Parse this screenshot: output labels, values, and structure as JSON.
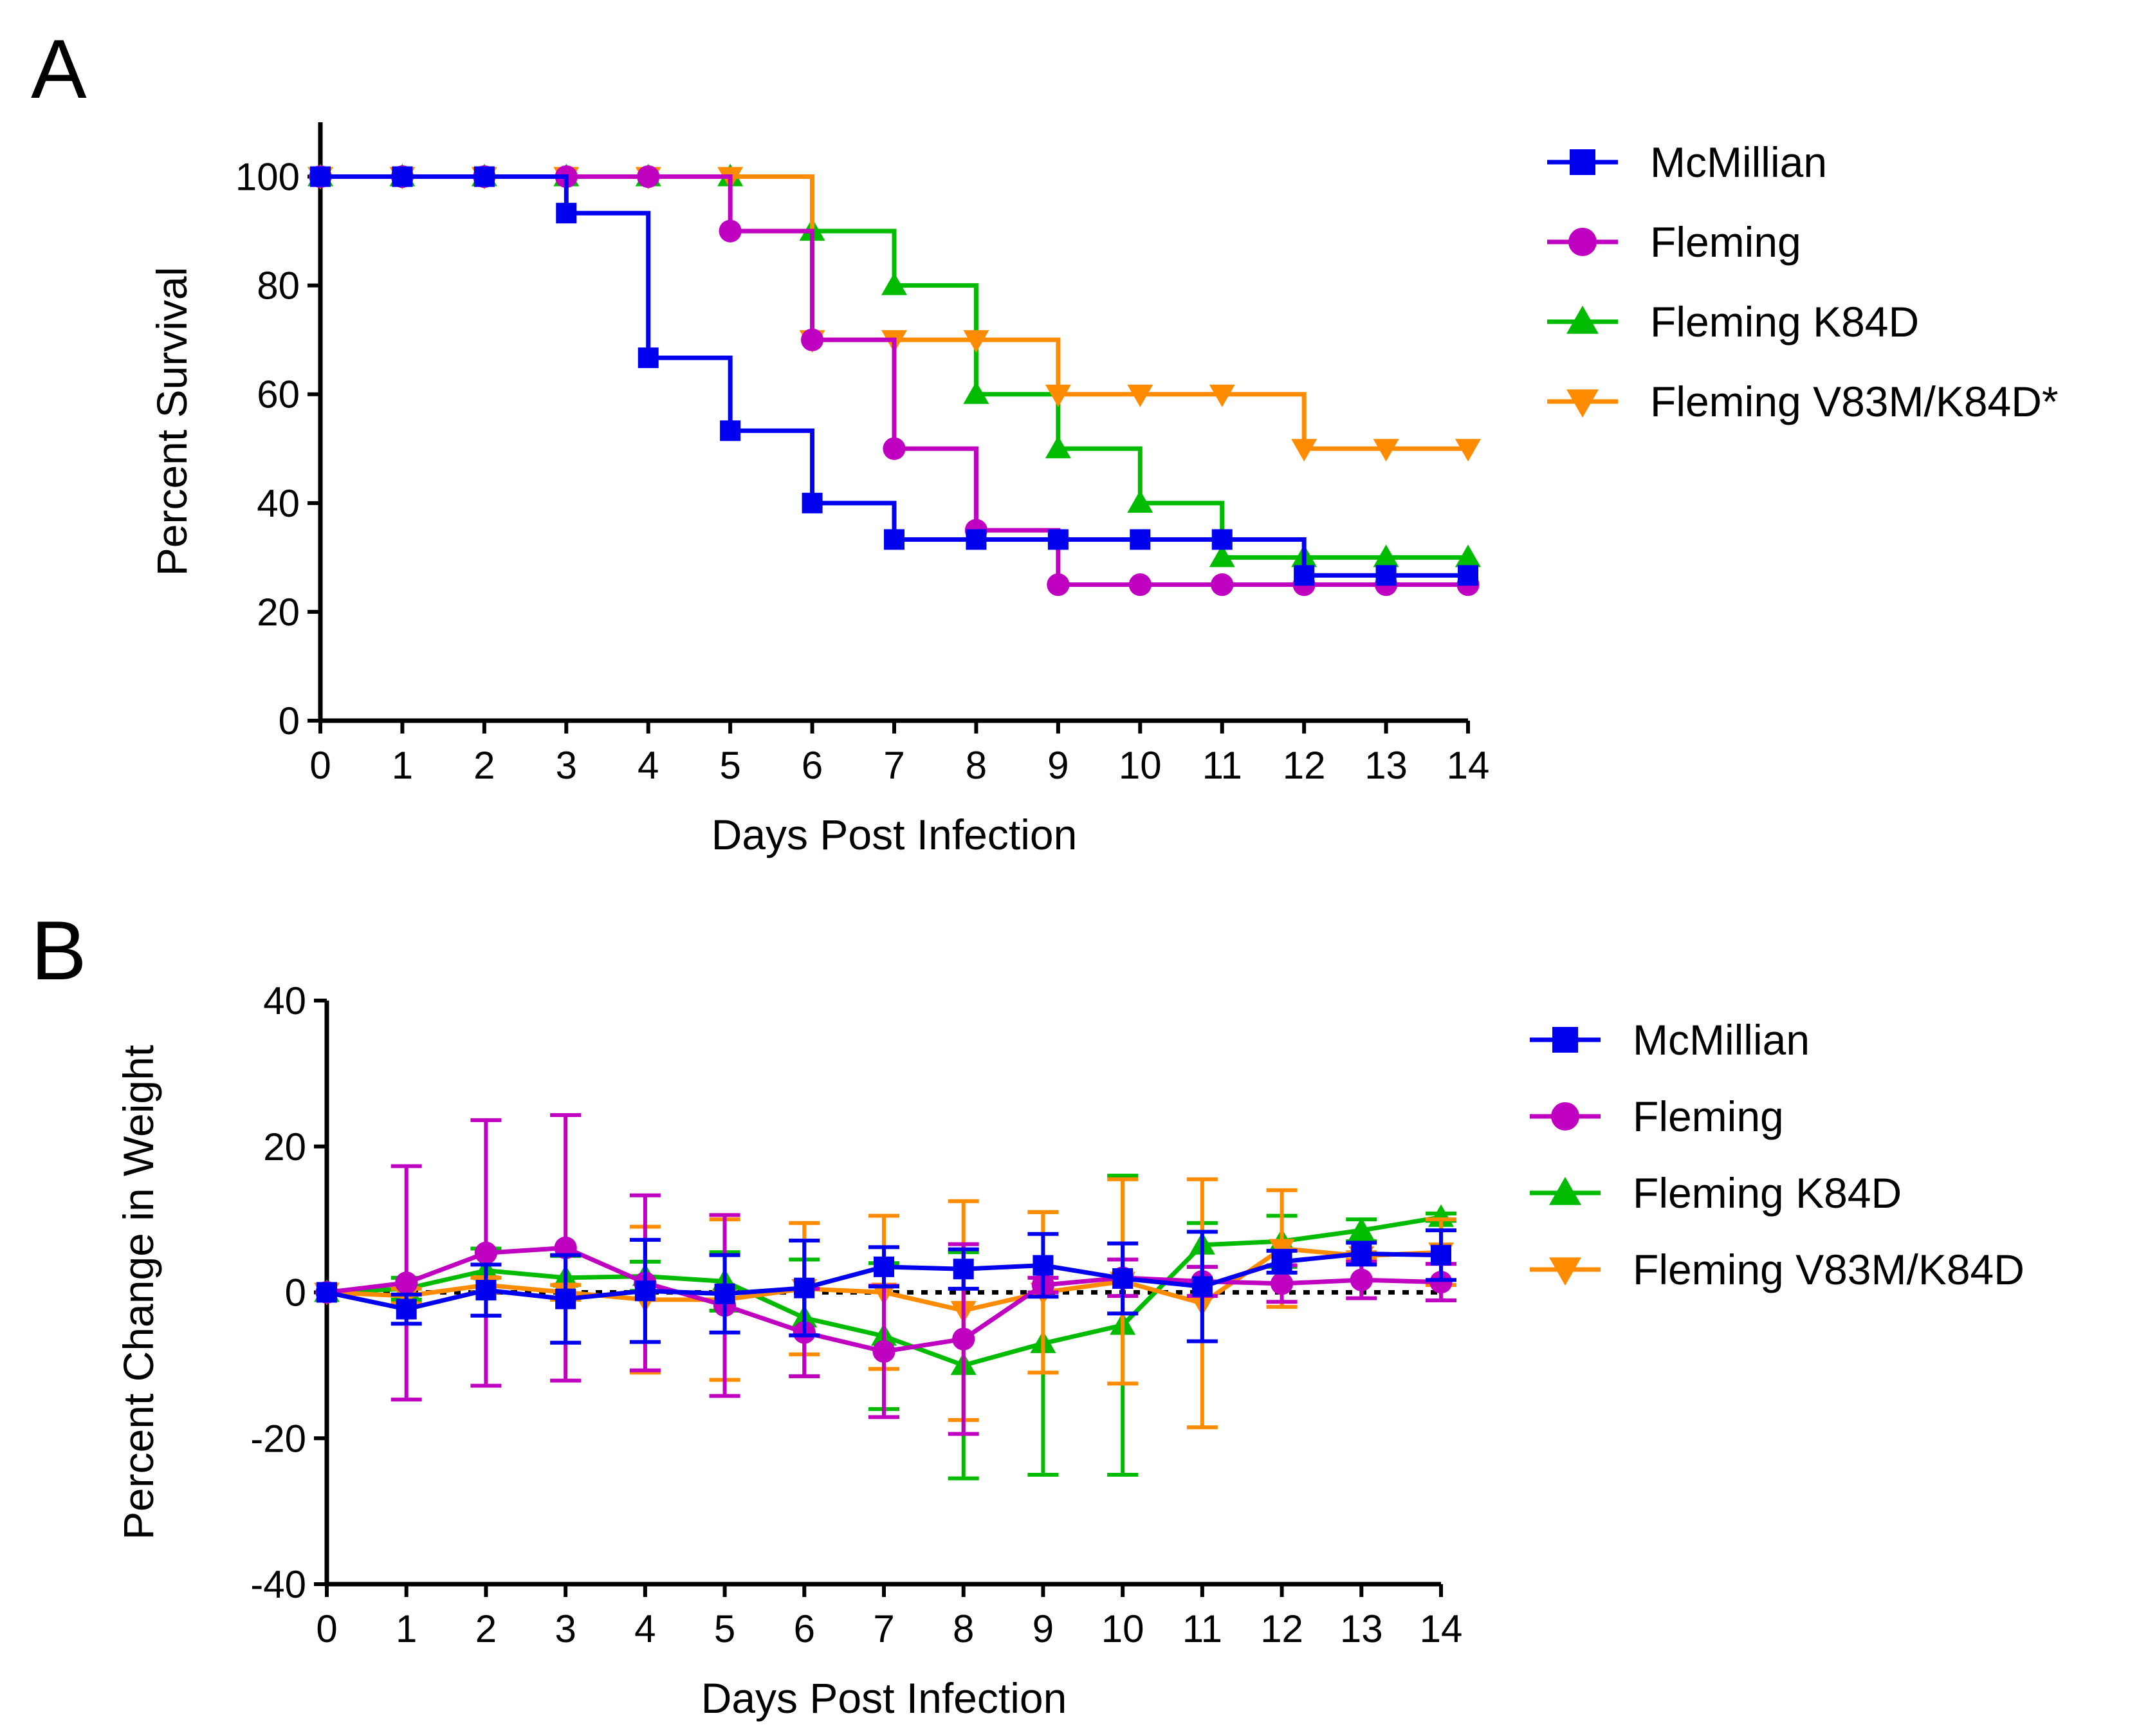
{
  "chart_data": [
    {
      "panel": "A",
      "type": "line",
      "style": "step",
      "xlabel": "Days Post Infection",
      "ylabel": "Percent Survival",
      "xlim": [
        0,
        14
      ],
      "ylim": [
        0,
        110
      ],
      "xticks": [
        0,
        1,
        2,
        3,
        4,
        5,
        6,
        7,
        8,
        9,
        10,
        11,
        12,
        13,
        14
      ],
      "yticks": [
        0,
        20,
        40,
        60,
        80,
        100
      ],
      "x": [
        0,
        1,
        2,
        3,
        4,
        5,
        6,
        7,
        8,
        9,
        10,
        11,
        12,
        13,
        14
      ],
      "series": [
        {
          "name": "McMillian",
          "color": "#0000ee",
          "marker": "square",
          "values": [
            100,
            100,
            100,
            93.3,
            66.7,
            53.3,
            40,
            33.3,
            33.3,
            33.3,
            33.3,
            33.3,
            26.7,
            26.7,
            26.7
          ]
        },
        {
          "name": "Fleming",
          "color": "#c000c0",
          "marker": "circle",
          "values": [
            100,
            100,
            100,
            100,
            100,
            90,
            70,
            50,
            35,
            25,
            25,
            25,
            25,
            25,
            25
          ]
        },
        {
          "name": "Fleming K84D",
          "color": "#00bb00",
          "marker": "triangle-up",
          "values": [
            100,
            100,
            100,
            100,
            100,
            100,
            90,
            80,
            60,
            50,
            40,
            30,
            30,
            30,
            30
          ]
        },
        {
          "name": "Fleming V83M/K84D*",
          "color": "#ff8c00",
          "marker": "triangle-down",
          "values": [
            100,
            100,
            100,
            100,
            100,
            100,
            70,
            70,
            70,
            60,
            60,
            60,
            50,
            50,
            50
          ]
        }
      ]
    },
    {
      "panel": "B",
      "type": "line",
      "xlabel": "Days Post Infection",
      "ylabel": "Percent Change in Weight",
      "xlim": [
        0,
        14
      ],
      "ylim": [
        -40,
        40
      ],
      "xticks": [
        0,
        1,
        2,
        3,
        4,
        5,
        6,
        7,
        8,
        9,
        10,
        11,
        12,
        13,
        14
      ],
      "yticks": [
        -40,
        -20,
        0,
        20,
        40
      ],
      "x": [
        0,
        1,
        2,
        3,
        4,
        5,
        6,
        7,
        8,
        9,
        10,
        11,
        12,
        13,
        14
      ],
      "reference_line": 0,
      "series": [
        {
          "name": "Fleming K84D",
          "color": "#00bb00",
          "marker": "triangle-up",
          "values": [
            0,
            0.5,
            3,
            2,
            2.2,
            1.5,
            -3.5,
            -6,
            -10,
            -7,
            -4.5,
            6.5,
            7,
            8.5,
            10.3
          ],
          "errors": [
            0,
            1.5,
            3,
            3,
            2,
            4,
            8,
            10,
            15.5,
            18,
            20.5,
            3,
            3.5,
            1.5,
            0.5
          ]
        },
        {
          "name": "Fleming V83M/K84D",
          "color": "#ff8c00",
          "marker": "triangle-down",
          "values": [
            0,
            -0.5,
            1,
            0,
            -1,
            -1,
            0.5,
            0,
            -2.5,
            0,
            1.5,
            -1.5,
            6,
            5,
            5.5
          ],
          "errors": [
            0,
            1,
            1,
            1,
            10,
            11,
            9,
            10.5,
            15,
            11,
            14,
            17,
            8,
            0.5,
            4.5
          ]
        },
        {
          "name": "Fleming",
          "color": "#c000c0",
          "marker": "circle",
          "values": [
            0,
            1.3,
            5.4,
            6.1,
            1.3,
            -1.8,
            -5.5,
            -8.1,
            -6.4,
            1,
            2,
            1.5,
            1.2,
            1.7,
            1.4
          ],
          "errors": [
            0,
            16,
            18.2,
            18.2,
            12,
            12.4,
            6,
            9,
            13,
            1,
            2.5,
            2,
            2.5,
            2.5,
            2.5
          ]
        },
        {
          "name": "McMillian",
          "color": "#0000ee",
          "marker": "square",
          "values": [
            0,
            -2.3,
            0.3,
            -0.9,
            0.2,
            -0.2,
            0.6,
            3.5,
            3.2,
            3.7,
            1.9,
            0.8,
            4.2,
            5.3,
            5.1
          ],
          "errors": [
            0,
            2,
            3.5,
            6,
            7,
            5.3,
            6.5,
            2.7,
            2.7,
            4.3,
            4.8,
            7.5,
            1.5,
            1.5,
            3.4
          ]
        }
      ]
    }
  ],
  "figure": {
    "panel_a_letter": "A",
    "panel_b_letter": "B",
    "legend_a": [
      "McMillian",
      "Fleming",
      "Fleming K84D",
      "Fleming V83M/K84D*"
    ],
    "legend_b": [
      "McMillian",
      "Fleming",
      "Fleming K84D",
      "Fleming V83M/K84D"
    ]
  }
}
